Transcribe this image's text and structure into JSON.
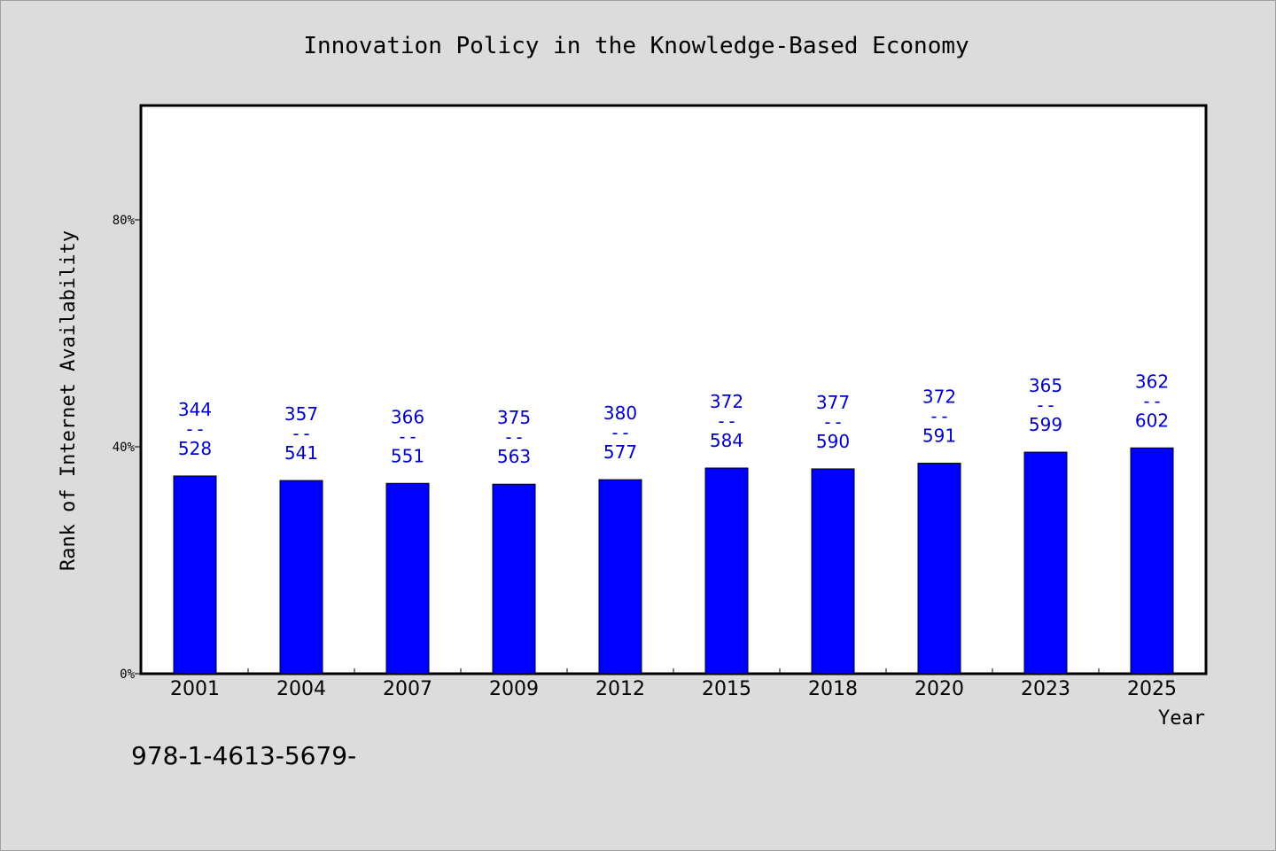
{
  "chart_data": {
    "type": "bar",
    "title": "Innovation Policy in the Knowledge-Based Economy",
    "xlabel": "Year",
    "ylabel": "Rank of Internet Availability",
    "categories": [
      "2001",
      "2004",
      "2007",
      "2009",
      "2012",
      "2015",
      "2018",
      "2020",
      "2023",
      "2025"
    ],
    "values": [
      0.3485,
      0.3405,
      0.3355,
      0.334,
      0.342,
      0.3625,
      0.361,
      0.371,
      0.3905,
      0.398
    ],
    "data_labels": [
      {
        "top": "344",
        "sep": "--",
        "bottom": "528"
      },
      {
        "top": "357",
        "sep": "--",
        "bottom": "541"
      },
      {
        "top": "366",
        "sep": "--",
        "bottom": "551"
      },
      {
        "top": "375",
        "sep": "--",
        "bottom": "563"
      },
      {
        "top": "380",
        "sep": "--",
        "bottom": "577"
      },
      {
        "top": "372",
        "sep": "--",
        "bottom": "584"
      },
      {
        "top": "377",
        "sep": "--",
        "bottom": "590"
      },
      {
        "top": "372",
        "sep": "--",
        "bottom": "591"
      },
      {
        "top": "365",
        "sep": "--",
        "bottom": "599"
      },
      {
        "top": "362",
        "sep": "--",
        "bottom": "602"
      }
    ],
    "yticks": [
      {
        "value": 0,
        "label": "0%"
      },
      {
        "value": 0.4,
        "label": "40%"
      },
      {
        "value": 0.8,
        "label": "80%"
      }
    ],
    "ylim": [
      0,
      1.0
    ],
    "grid": false,
    "bar_color": "#0000ff",
    "label_color": "#0000cc",
    "plot_background": "#ffffff",
    "page_background": "#dcdcdc"
  },
  "footer": {
    "isbn_text": "978-1-4613-5679-"
  }
}
